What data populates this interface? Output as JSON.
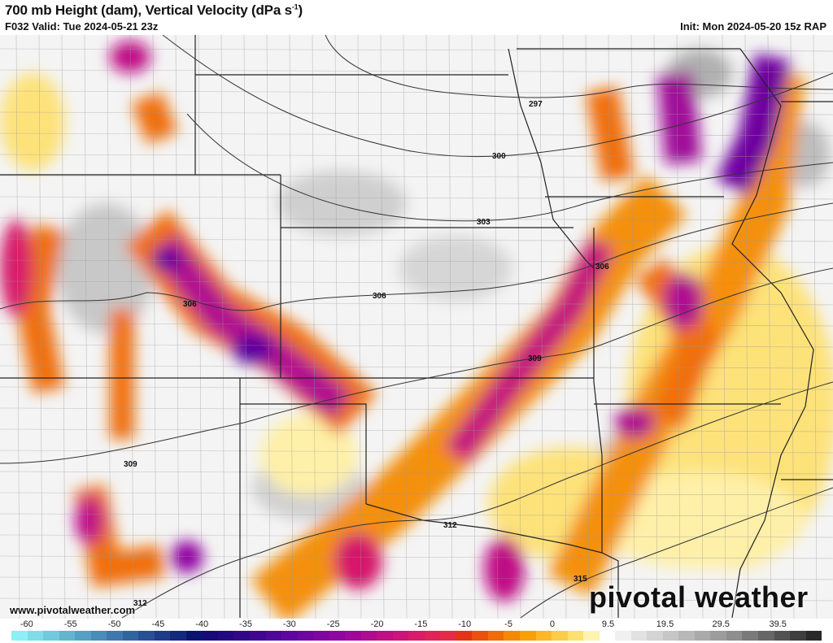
{
  "header": {
    "title": "700 mb Height (dam), Vertical Velocity (dPa s",
    "title_sup": "-1",
    "title_end": ")",
    "valid": "F032 Valid: Tue 2024-05-21 23z",
    "init": "Init: Mon 2024-05-20 15z RAP"
  },
  "map": {
    "contour_labels": [
      "297",
      "300",
      "303",
      "306",
      "306",
      "306",
      "309",
      "309",
      "312",
      "312",
      "315"
    ],
    "website": "www.pivotalweather.com",
    "brand": "pivotal weather"
  },
  "colorbar": {
    "labels": [
      "-60",
      "-55",
      "-50",
      "-45",
      "-40",
      "-35",
      "-30",
      "-25",
      "-20",
      "-15",
      "-10",
      "-5",
      "0",
      "9.5",
      "19.5",
      "29.5",
      "39.5"
    ],
    "colors": [
      "#8ef0f5",
      "#80dce8",
      "#72c8dc",
      "#64b4d0",
      "#56a0c4",
      "#4a8cb8",
      "#3e78ac",
      "#3264a0",
      "#285094",
      "#1e3c88",
      "#14287c",
      "#0a1470",
      "#160a78",
      "#240880",
      "#320888",
      "#400690",
      "#500698",
      "#6006a0",
      "#7006a0",
      "#8006a0",
      "#9006a0",
      "#a0089a",
      "#b00c90",
      "#c01086",
      "#cc147a",
      "#d61c6a",
      "#de2458",
      "#e42c48",
      "#e43418",
      "#ea5010",
      "#f06c08",
      "#f48808",
      "#f8a008",
      "#fab828",
      "#fccc48",
      "#fde070",
      "#fef4b0",
      "#ffffff",
      "#f0f0f0",
      "#e2e2e2",
      "#d4d4d4",
      "#c6c6c6",
      "#b8b8b8",
      "#aaaaaa",
      "#9c9c9c",
      "#8e8e8e",
      "#7a7a7a",
      "#666666",
      "#525252",
      "#3e3e3e",
      "#2a2a2a"
    ]
  }
}
